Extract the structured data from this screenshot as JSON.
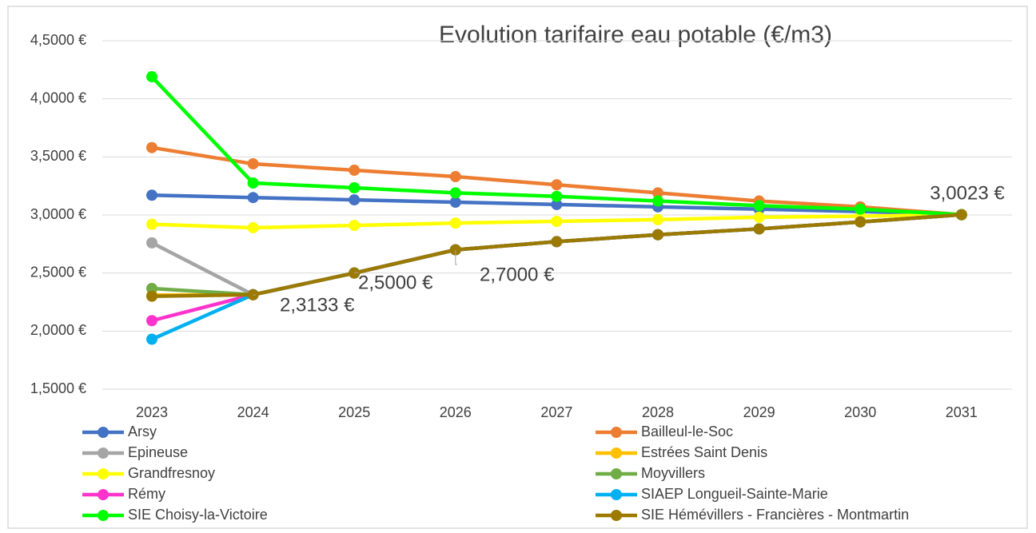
{
  "chart_data": {
    "type": "line",
    "title": "Evolution tarifaire eau potable (€/m3)",
    "categories": [
      "2023",
      "2024",
      "2025",
      "2026",
      "2027",
      "2028",
      "2029",
      "2030",
      "2031"
    ],
    "ylim": [
      1.5,
      4.5
    ],
    "yticks": [
      {
        "value": 1.5,
        "label": "1,5000 €"
      },
      {
        "value": 2.0,
        "label": "2,0000 €"
      },
      {
        "value": 2.5,
        "label": "2,5000 €"
      },
      {
        "value": 3.0,
        "label": "3,0000 €"
      },
      {
        "value": 3.5,
        "label": "3,5000 €"
      },
      {
        "value": 4.0,
        "label": "4,0000 €"
      },
      {
        "value": 4.5,
        "label": "4,5000 €"
      }
    ],
    "grid": true,
    "legend": "bottom",
    "series": [
      {
        "name": "Arsy",
        "color": "#4472c4",
        "values": [
          3.17,
          3.15,
          3.13,
          3.11,
          3.09,
          3.07,
          3.05,
          3.03,
          3.0023
        ]
      },
      {
        "name": "Bailleul-le-Soc",
        "color": "#ed7d31",
        "values": [
          3.58,
          3.44,
          3.385,
          3.33,
          3.26,
          3.19,
          3.12,
          3.07,
          3.0023
        ]
      },
      {
        "name": "Epineuse",
        "color": "#a5a5a5",
        "values": [
          2.76,
          2.3133,
          2.5,
          2.7,
          2.77,
          2.83,
          2.88,
          2.94,
          3.0023
        ]
      },
      {
        "name": "Estrées Saint Denis",
        "color": "#ffc000",
        "values": [
          2.31,
          2.3133,
          2.5,
          2.7,
          2.77,
          2.83,
          2.88,
          2.94,
          3.0023
        ]
      },
      {
        "name": "Grandfresnoy",
        "color": "#ffff00",
        "values": [
          2.92,
          2.89,
          2.91,
          2.93,
          2.945,
          2.96,
          2.98,
          2.99,
          3.0023
        ]
      },
      {
        "name": "Moyvillers",
        "color": "#70ad47",
        "values": [
          2.367,
          2.3133,
          2.5,
          2.7,
          2.77,
          2.83,
          2.88,
          2.94,
          3.0023
        ]
      },
      {
        "name": "Rémy",
        "color": "#ff33cc",
        "values": [
          2.09,
          2.3133,
          2.5,
          2.7,
          2.77,
          2.83,
          2.88,
          2.94,
          3.0023
        ]
      },
      {
        "name": "SIAEP Longueil-Sainte-Marie",
        "color": "#00b0f0",
        "values": [
          1.93,
          2.3133,
          2.5,
          2.7,
          2.77,
          2.83,
          2.88,
          2.94,
          3.0023
        ]
      },
      {
        "name": "SIE Choisy-la-Victoire",
        "color": "#00ff00",
        "values": [
          4.19,
          3.275,
          3.234,
          3.19,
          3.16,
          3.12,
          3.08,
          3.05,
          3.0023
        ]
      },
      {
        "name": "SIE Hémévillers - Francières - Montmartin",
        "color": "#9c7a00",
        "values": [
          2.3,
          2.3133,
          2.5,
          2.7,
          2.77,
          2.83,
          2.88,
          2.94,
          3.0023
        ],
        "value_labels": [
          null,
          "2,3133 €",
          "2,5000 €",
          "2,7000 €",
          null,
          null,
          null,
          null,
          "3,0023 €"
        ]
      }
    ]
  }
}
